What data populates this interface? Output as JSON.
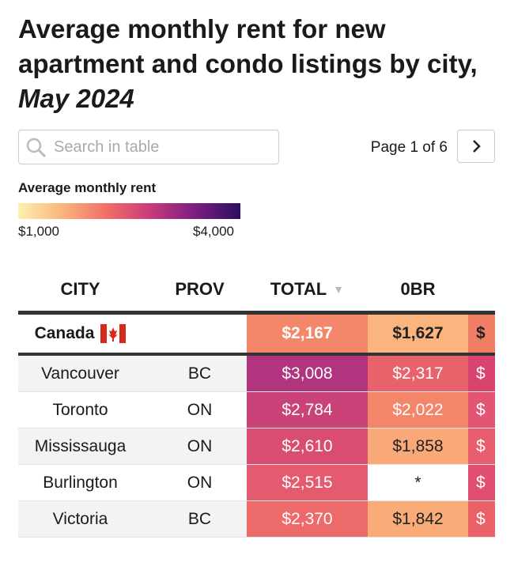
{
  "header": {
    "title_line1": "Average monthly rent for new",
    "title_line2": "apartment and condo listings by city,",
    "title_line3": "May 2024"
  },
  "search": {
    "placeholder": "Search in table"
  },
  "pagination": {
    "label": "Page 1 of 6"
  },
  "legend": {
    "title": "Average monthly rent",
    "min_label": "$1,000",
    "max_label": "$4,000",
    "colors": [
      "#fdf0b0",
      "#fbb47c",
      "#f06e68",
      "#c8397a",
      "#7a1d82",
      "#2b0f5e"
    ]
  },
  "table": {
    "columns": [
      "CITY",
      "PROV",
      "TOTAL",
      "0BR"
    ],
    "summary": {
      "cells": [
        "Canada",
        "$2,167",
        "$1,627",
        "$"
      ],
      "colors": [
        "#f4876a",
        "#fbb47e",
        "#f07f66"
      ],
      "text_colors": [
        "#ffffff",
        "#222222",
        "#222222"
      ]
    },
    "rows": [
      {
        "cells": [
          "Vancouver",
          "BC",
          "$3,008",
          "$2,317",
          "$"
        ],
        "colors": [
          "#b0357e",
          "#e8626b",
          "#d9446f"
        ],
        "text_colors": [
          "#ffffff",
          "#ffffff",
          "#ffffff"
        ]
      },
      {
        "cells": [
          "Toronto",
          "ON",
          "$2,784",
          "$2,022",
          "$"
        ],
        "colors": [
          "#c94379",
          "#f2856a",
          "#e35573"
        ],
        "text_colors": [
          "#ffffff",
          "#ffffff",
          "#ffffff"
        ]
      },
      {
        "cells": [
          "Mississauga",
          "ON",
          "$2,610",
          "$1,858",
          "$"
        ],
        "colors": [
          "#da4d73",
          "#f9a878",
          "#e85e6d"
        ],
        "text_colors": [
          "#ffffff",
          "#222222",
          "#ffffff"
        ]
      },
      {
        "cells": [
          "Burlington",
          "ON",
          "$2,515",
          "*",
          "$"
        ],
        "colors": [
          "#e45a6e",
          "#ffffff",
          "#e04f70"
        ],
        "text_colors": [
          "#ffffff",
          "#222222",
          "#ffffff"
        ]
      },
      {
        "cells": [
          "Victoria",
          "BC",
          "$2,370",
          "$1,842",
          "$"
        ],
        "colors": [
          "#ec6a69",
          "#f9ab78",
          "#ea6268"
        ],
        "text_colors": [
          "#ffffff",
          "#222222",
          "#ffffff"
        ]
      }
    ]
  }
}
